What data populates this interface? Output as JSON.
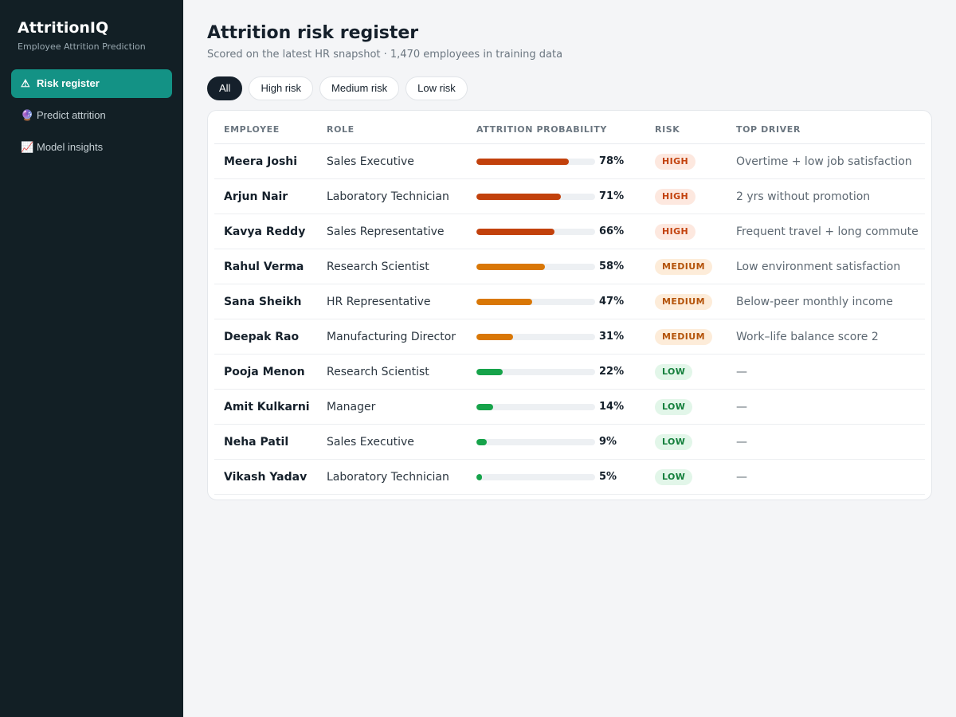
{
  "app": {
    "name": "AttritionIQ",
    "subtitle": "Employee Attrition Prediction"
  },
  "sidebar": {
    "items": [
      {
        "icon": "warning-icon",
        "glyph": "⚠",
        "label": "Risk register",
        "active": true
      },
      {
        "icon": "crystal-ball-icon",
        "glyph": "🔮",
        "label": "Predict attrition",
        "active": false
      },
      {
        "icon": "chart-increasing-icon",
        "glyph": "📈",
        "label": "Model insights",
        "active": false
      }
    ]
  },
  "page": {
    "title": "Attrition risk register",
    "subtitle": "Scored on the latest HR snapshot · 1,470 employees in training data"
  },
  "filters": [
    "All",
    "High risk",
    "Medium risk",
    "Low risk"
  ],
  "selected_filter": "All",
  "table": {
    "headers": {
      "employee": "EMPLOYEE",
      "role": "ROLE",
      "probability": "ATTRITION PROBABILITY",
      "risk": "RISK",
      "driver": "TOP DRIVER"
    },
    "rows": [
      {
        "name": "Meera Joshi",
        "role": "Sales Executive",
        "probability": 0.78,
        "pct": "78%",
        "risk": "HIGH",
        "driver": "Overtime + low job satisfaction"
      },
      {
        "name": "Arjun Nair",
        "role": "Laboratory Technician",
        "probability": 0.71,
        "pct": "71%",
        "risk": "HIGH",
        "driver": "2 yrs without promotion"
      },
      {
        "name": "Kavya Reddy",
        "role": "Sales Representative",
        "probability": 0.66,
        "pct": "66%",
        "risk": "HIGH",
        "driver": "Frequent travel + long commute"
      },
      {
        "name": "Rahul Verma",
        "role": "Research Scientist",
        "probability": 0.58,
        "pct": "58%",
        "risk": "MEDIUM",
        "driver": "Low environment satisfaction"
      },
      {
        "name": "Sana Sheikh",
        "role": "HR Representative",
        "probability": 0.47,
        "pct": "47%",
        "risk": "MEDIUM",
        "driver": "Below-peer monthly income"
      },
      {
        "name": "Deepak Rao",
        "role": "Manufacturing Director",
        "probability": 0.31,
        "pct": "31%",
        "risk": "MEDIUM",
        "driver": "Work–life balance score 2"
      },
      {
        "name": "Pooja Menon",
        "role": "Research Scientist",
        "probability": 0.22,
        "pct": "22%",
        "risk": "LOW",
        "driver": "—"
      },
      {
        "name": "Amit Kulkarni",
        "role": "Manager",
        "probability": 0.14,
        "pct": "14%",
        "risk": "LOW",
        "driver": "—"
      },
      {
        "name": "Neha Patil",
        "role": "Sales Executive",
        "probability": 0.09,
        "pct": "9%",
        "risk": "LOW",
        "driver": "—"
      },
      {
        "name": "Vikash Yadav",
        "role": "Laboratory Technician",
        "probability": 0.05,
        "pct": "5%",
        "risk": "LOW",
        "driver": "—"
      }
    ]
  },
  "colors": {
    "sidebar_bg": "#121f25",
    "accent": "#139285",
    "high": "#c2410c",
    "medium": "#d97706",
    "low": "#16a34a"
  }
}
